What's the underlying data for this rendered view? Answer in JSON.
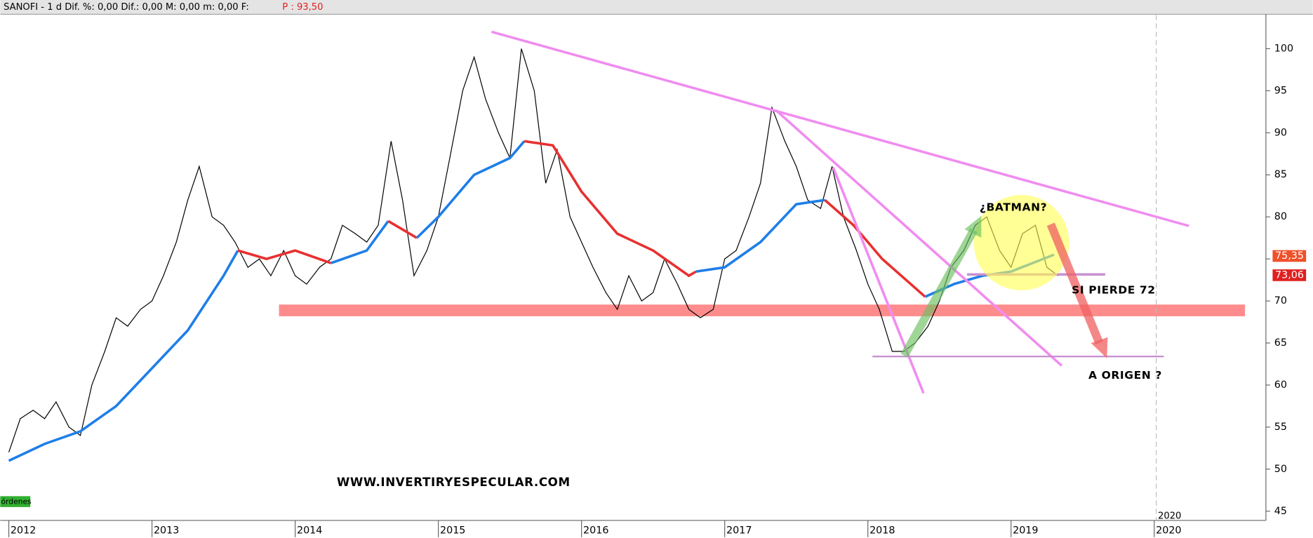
{
  "header": {
    "text": "SANOFI -  1 d Dif. %: 0,00 Dif.: 0,00 M: 0,00 m: 0,00 F:",
    "price": "P : 93,50"
  },
  "chart_data": {
    "type": "line",
    "xlim": [
      2011.94,
      2020.78
    ],
    "ylim": [
      43.9,
      104
    ],
    "xticks": [
      2012,
      2013,
      2014,
      2015,
      2016,
      2017,
      2018,
      2019,
      2020
    ],
    "yticks": [
      45,
      50,
      55,
      60,
      65,
      70,
      75,
      80,
      85,
      90,
      95,
      100
    ],
    "series": [
      {
        "color": "#000000",
        "x": [
          2012.0,
          2012.08,
          2012.17,
          2012.25,
          2012.33,
          2012.42,
          2012.5,
          2012.58,
          2012.67,
          2012.75,
          2012.83,
          2012.92,
          2013.0,
          2013.08,
          2013.17,
          2013.25,
          2013.33,
          2013.42,
          2013.5,
          2013.58,
          2013.67,
          2013.75,
          2013.83,
          2013.92,
          2014.0,
          2014.08,
          2014.17,
          2014.25,
          2014.33,
          2014.42,
          2014.5,
          2014.58,
          2014.67,
          2014.75,
          2014.83,
          2014.92,
          2015.0,
          2015.08,
          2015.17,
          2015.25,
          2015.33,
          2015.42,
          2015.5,
          2015.58,
          2015.67,
          2015.75,
          2015.83,
          2015.92,
          2016.0,
          2016.08,
          2016.17,
          2016.25,
          2016.33,
          2016.42,
          2016.5,
          2016.58,
          2016.67,
          2016.75,
          2016.83,
          2016.92,
          2017.0,
          2017.08,
          2017.17,
          2017.25,
          2017.33,
          2017.42,
          2017.5,
          2017.58,
          2017.67,
          2017.75,
          2017.83,
          2017.92,
          2018.0,
          2018.08,
          2018.17,
          2018.25,
          2018.33,
          2018.42,
          2018.5,
          2018.58,
          2018.67,
          2018.75,
          2018.83,
          2018.92,
          2019.0,
          2019.08,
          2019.17,
          2019.25,
          2019.33
        ],
        "values": [
          52,
          56,
          57,
          56,
          58,
          55,
          54,
          60,
          64,
          68,
          67,
          69,
          70,
          73,
          77,
          82,
          86,
          80,
          79,
          77,
          74,
          75,
          73,
          76,
          73,
          72,
          74,
          75,
          79,
          78,
          77,
          79,
          89,
          82,
          73,
          76,
          80,
          87,
          95,
          99,
          94,
          90,
          87,
          100,
          95,
          84,
          88,
          80,
          77,
          74,
          71,
          69,
          73,
          70,
          71,
          75,
          72,
          69,
          68,
          69,
          75,
          76,
          80,
          84,
          93,
          89,
          86,
          82,
          81,
          86,
          80,
          76,
          72,
          69,
          64,
          64,
          65,
          67,
          70,
          74,
          76,
          79,
          80,
          76,
          74,
          78,
          79,
          74,
          73
        ]
      },
      {
        "x": [
          2012.0,
          2012.25,
          2012.5,
          2012.75,
          2013.0,
          2013.25,
          2013.5,
          2013.6,
          2013.8,
          2014.0,
          2014.25,
          2014.5,
          2014.65,
          2014.85,
          2015.0,
          2015.25,
          2015.5,
          2015.6,
          2015.8,
          2016.0,
          2016.25,
          2016.5,
          2016.75,
          2016.8,
          2017.0,
          2017.25,
          2017.5,
          2017.7,
          2017.9,
          2018.1,
          2018.3,
          2018.4,
          2018.6,
          2018.8,
          2019.0,
          2019.3
        ],
        "values": [
          51,
          53,
          54.5,
          57.5,
          62,
          66.5,
          73,
          76,
          75,
          76,
          74.5,
          76,
          79.5,
          77.5,
          80,
          85,
          87,
          89,
          88.5,
          83,
          78,
          76,
          73,
          73.5,
          74,
          77,
          81.5,
          82,
          79,
          75,
          72,
          70.5,
          72,
          73,
          73.5,
          75.5
        ],
        "colors": [
          "#1e7ee8",
          "#1e7ee8",
          "#1e7ee8",
          "#1e7ee8",
          "#1e7ee8",
          "#1e7ee8",
          "#1e7ee8",
          "#e83030",
          "#e83030",
          "#e83030",
          "#1e7ee8",
          "#1e7ee8",
          "#e83030",
          "#1e7ee8",
          "#1e7ee8",
          "#1e7ee8",
          "#1e7ee8",
          "#e83030",
          "#e83030",
          "#e83030",
          "#e83030",
          "#e83030",
          "#e83030",
          "#1e7ee8",
          "#1e7ee8",
          "#1e7ee8",
          "#1e7ee8",
          "#e83030",
          "#e83030",
          "#e83030",
          "#e83030",
          "#1e7ee8",
          "#1e7ee8",
          "#1e7ee8",
          "#1e7ee8",
          "#1e7ee8"
        ]
      }
    ],
    "markers": [
      {
        "value": 75.35,
        "label": "75,35",
        "color": "#f0502a"
      },
      {
        "value": 73.06,
        "label": "73,06",
        "color": "#e02020"
      }
    ],
    "annotations": [
      "¿BATMAN?",
      "SI PIERDE 72",
      "A ORIGEN ?",
      "WWW.INVERTIRYESPECULAR.COM",
      "órdenes",
      "2020"
    ]
  }
}
